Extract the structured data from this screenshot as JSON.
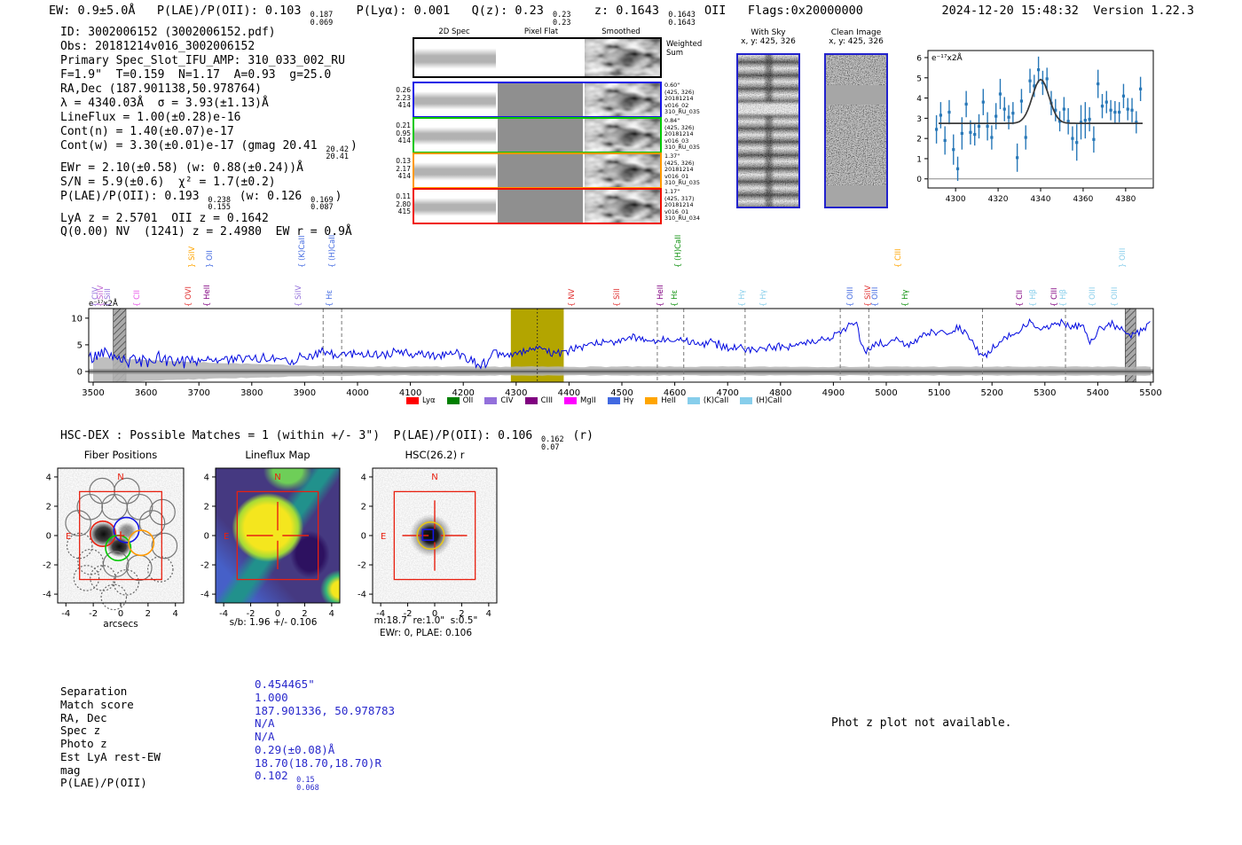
{
  "header": {
    "parts": [
      {
        "t": "EW: 0.9±5.0Å   P(LAE)/P(OII): 0.103 "
      },
      {
        "f": [
          "0.187",
          "0.069"
        ]
      },
      {
        "t": "   P(Lyα): 0.001   Q(z): 0.23 "
      },
      {
        "f": [
          "0.23",
          "0.23"
        ]
      },
      {
        "t": "   z: 0.1643 "
      },
      {
        "f": [
          "0.1643",
          "0.1643"
        ]
      },
      {
        "t": " OII   Flags:0x20000000"
      }
    ],
    "datetime": "2024-12-20 15:48:32",
    "version": "Version 1.22.3"
  },
  "info_block": {
    "lines": [
      [
        {
          "t": "ID: 3002006152 (3002006152.pdf)"
        }
      ],
      [
        {
          "t": "Obs: 20181214v016_3002006152"
        }
      ],
      [
        {
          "t": "Primary Spec_Slot_IFU_AMP: 310_033_002_RU"
        }
      ],
      [
        {
          "t": "F=1.9\"  T=0.159  N=1.17  A=0.93  g=25.0"
        }
      ],
      [
        {
          "t": "RA,Dec (187.901138,50.978764)"
        }
      ],
      [
        {
          "t": "λ = 4340.03Å  σ = 3.93(±1.13)Å"
        }
      ],
      [
        {
          "t": "LineFlux = 1.00(±0.28)e-16"
        }
      ],
      [
        {
          "t": "Cont(n) = 1.40(±0.07)e-17"
        }
      ],
      [
        {
          "t": "Cont(w) = 3.30(±0.01)e-17 (gmag 20.41 "
        },
        {
          "f": [
            "20.42",
            "20.41"
          ]
        },
        {
          "t": ")"
        }
      ],
      [
        {
          "t": "EWr = 2.10(±0.58) (w: 0.88(±0.24))Å"
        }
      ],
      [
        {
          "t": "S/N = 5.9(±0.6)  χ² = 1.7(±0.2)"
        }
      ],
      [
        {
          "t": "P(LAE)/P(OII): 0.193 "
        },
        {
          "f": [
            "0.238",
            "0.155"
          ]
        },
        {
          "t": " (w: 0.126 "
        },
        {
          "f": [
            "0.169",
            "0.087"
          ]
        },
        {
          "t": ")"
        }
      ],
      [
        {
          "t": "LyA z = 2.5701  OII z = 0.1642"
        }
      ],
      [
        {
          "t": "Q(0.00) NV  (1241) z = 2.4980  EW r = 0.9Å"
        }
      ]
    ]
  },
  "spec2d": {
    "col_titles": [
      "2D Spec",
      "Pixel Flat",
      "Smoothed"
    ],
    "weighted_label": "Weighted\nSum",
    "rows": [
      {
        "border": "#000000",
        "left": [],
        "right": []
      },
      {
        "border": "#1515e6",
        "left": [
          "0.26",
          "2.23",
          "414"
        ],
        "right": [
          "0.60\"",
          "(425, 326)",
          "20181214",
          "v016_02",
          "310_RU_035"
        ]
      },
      {
        "border": "#00c800",
        "left": [
          "0.21",
          "0.95",
          "414"
        ],
        "right": [
          "0.84\"",
          "(425, 326)",
          "20181214",
          "v016_03",
          "310_RU_035"
        ]
      },
      {
        "border": "#ff9900",
        "left": [
          "0.13",
          "2.17",
          "414"
        ],
        "right": [
          "1.37\"",
          "(425, 326)",
          "20181214",
          "v016_01",
          "310_RU_035"
        ]
      },
      {
        "border": "#f01000",
        "left": [
          "0.11",
          "2.80",
          "415"
        ],
        "right": [
          "1.17\"",
          "(425, 317)",
          "20181214",
          "v016_01",
          "310_RU_034"
        ]
      }
    ]
  },
  "sky_panels": {
    "with_sky": {
      "title": "With Sky",
      "subtitle": "x, y: 425, 326"
    },
    "clean": {
      "title": "Clean Image",
      "subtitle": "x, y: 425, 326"
    }
  },
  "chart_data": [
    {
      "id": "line_fit_zoom",
      "type": "scatter",
      "ylabel_inside": "e⁻¹⁷x2Å",
      "xlim": [
        4287,
        4393
      ],
      "ylim": [
        -0.45,
        6.35
      ],
      "xticks": [
        4300,
        4320,
        4340,
        4360,
        4380
      ],
      "yticks": [
        0,
        1,
        2,
        3,
        4,
        5,
        6
      ],
      "fit": {
        "model": "gaussian+constant",
        "baseline": 2.75,
        "amplitude": 2.17,
        "center": 4340.03,
        "sigma": 3.93
      },
      "points": [
        [
          4291,
          2.45,
          0.7
        ],
        [
          4293,
          3.15,
          0.65
        ],
        [
          4295,
          1.9,
          0.7
        ],
        [
          4297,
          3.3,
          0.6
        ],
        [
          4299,
          1.45,
          0.75
        ],
        [
          4301,
          0.5,
          0.6
        ],
        [
          4303,
          2.25,
          0.8
        ],
        [
          4305,
          3.7,
          0.65
        ],
        [
          4307,
          2.3,
          0.6
        ],
        [
          4309,
          2.2,
          0.55
        ],
        [
          4311,
          2.6,
          0.6
        ],
        [
          4313,
          3.8,
          0.65
        ],
        [
          4315,
          2.6,
          0.7
        ],
        [
          4317,
          2.05,
          0.6
        ],
        [
          4319,
          3.1,
          0.65
        ],
        [
          4321,
          4.2,
          0.75
        ],
        [
          4323,
          3.45,
          0.6
        ],
        [
          4325,
          3.05,
          0.6
        ],
        [
          4327,
          3.25,
          0.55
        ],
        [
          4329,
          1.05,
          0.7
        ],
        [
          4331,
          3.85,
          0.6
        ],
        [
          4333,
          2.05,
          0.6
        ],
        [
          4335,
          4.85,
          0.6
        ],
        [
          4337,
          4.6,
          0.55
        ],
        [
          4339,
          5.4,
          0.65
        ],
        [
          4341,
          4.75,
          0.6
        ],
        [
          4343,
          4.95,
          0.55
        ],
        [
          4345,
          3.75,
          0.6
        ],
        [
          4347,
          3.4,
          0.55
        ],
        [
          4349,
          2.85,
          0.5
        ],
        [
          4351,
          3.45,
          0.6
        ],
        [
          4353,
          2.85,
          0.65
        ],
        [
          4355,
          2.0,
          0.6
        ],
        [
          4357,
          1.8,
          0.9
        ],
        [
          4359,
          2.8,
          0.85
        ],
        [
          4361,
          2.9,
          0.9
        ],
        [
          4363,
          2.95,
          0.6
        ],
        [
          4365,
          1.95,
          0.65
        ],
        [
          4367,
          4.7,
          0.7
        ],
        [
          4369,
          3.6,
          0.6
        ],
        [
          4371,
          3.8,
          0.55
        ],
        [
          4373,
          3.4,
          0.5
        ],
        [
          4375,
          3.3,
          0.55
        ],
        [
          4377,
          3.3,
          0.5
        ],
        [
          4379,
          4.1,
          0.6
        ],
        [
          4381,
          3.45,
          0.55
        ],
        [
          4383,
          3.4,
          0.6
        ],
        [
          4385,
          2.8,
          0.55
        ],
        [
          4387,
          4.45,
          0.6
        ]
      ]
    },
    {
      "id": "full_spectrum",
      "type": "line",
      "ylabel_inside": "e⁻¹⁷x2Å",
      "xlim": [
        3490,
        5510
      ],
      "ylim": [
        -2,
        11.8
      ],
      "xticks": [
        3500,
        3600,
        3700,
        3800,
        3900,
        4000,
        4100,
        4200,
        4300,
        4400,
        4500,
        4600,
        4700,
        4800,
        4900,
        5000,
        5100,
        5200,
        5300,
        5400,
        5500
      ],
      "yticks": [
        0,
        5,
        10
      ],
      "emission_center": 4340.03,
      "highlight_band": [
        4290,
        4390
      ],
      "hatched_bands": [
        [
          3538,
          3562
        ],
        [
          5452,
          5472
        ]
      ],
      "dashed_lines": [
        3935,
        3970,
        4567,
        4617,
        4733,
        4913,
        4967,
        5182,
        5339
      ],
      "anchors": [
        [
          3500,
          2.5
        ],
        [
          3520,
          4.0
        ],
        [
          3545,
          3.0
        ],
        [
          3560,
          2.0
        ],
        [
          3600,
          2.2
        ],
        [
          3650,
          2.0
        ],
        [
          3700,
          2.2
        ],
        [
          3750,
          2.3
        ],
        [
          3800,
          2.2
        ],
        [
          3850,
          2.5
        ],
        [
          3880,
          2.2
        ],
        [
          3935,
          3.6
        ],
        [
          3955,
          2.8
        ],
        [
          3975,
          3.4
        ],
        [
          4000,
          3.2
        ],
        [
          4050,
          3.3
        ],
        [
          4080,
          3.5
        ],
        [
          4120,
          3.0
        ],
        [
          4150,
          3.2
        ],
        [
          4200,
          3.3
        ],
        [
          4230,
          1.2
        ],
        [
          4260,
          3.0
        ],
        [
          4300,
          3.3
        ],
        [
          4340,
          4.2
        ],
        [
          4380,
          3.6
        ],
        [
          4420,
          4.2
        ],
        [
          4450,
          5.2
        ],
        [
          4490,
          5.8
        ],
        [
          4520,
          6.4
        ],
        [
          4550,
          5.6
        ],
        [
          4580,
          5.9
        ],
        [
          4610,
          6.1
        ],
        [
          4640,
          5.6
        ],
        [
          4680,
          5.2
        ],
        [
          4720,
          4.2
        ],
        [
          4760,
          4.4
        ],
        [
          4800,
          4.6
        ],
        [
          4840,
          5.2
        ],
        [
          4870,
          5.6
        ],
        [
          4900,
          6.6
        ],
        [
          4920,
          7.6
        ],
        [
          4935,
          9.0
        ],
        [
          4945,
          8.6
        ],
        [
          4955,
          4.4
        ],
        [
          4965,
          3.6
        ],
        [
          4980,
          5.4
        ],
        [
          5000,
          5.0
        ],
        [
          5020,
          6.2
        ],
        [
          5040,
          4.6
        ],
        [
          5060,
          6.0
        ],
        [
          5080,
          7.2
        ],
        [
          5100,
          7.0
        ],
        [
          5120,
          7.6
        ],
        [
          5140,
          8.0
        ],
        [
          5160,
          6.0
        ],
        [
          5175,
          3.4
        ],
        [
          5190,
          3.2
        ],
        [
          5210,
          5.0
        ],
        [
          5230,
          6.6
        ],
        [
          5250,
          7.4
        ],
        [
          5270,
          9.4
        ],
        [
          5290,
          8.0
        ],
        [
          5310,
          8.6
        ],
        [
          5330,
          9.0
        ],
        [
          5350,
          8.2
        ],
        [
          5370,
          8.8
        ],
        [
          5385,
          5.2
        ],
        [
          5400,
          7.6
        ],
        [
          5420,
          9.2
        ],
        [
          5440,
          8.4
        ],
        [
          5460,
          7.0
        ],
        [
          5480,
          7.4
        ],
        [
          5500,
          9.0
        ]
      ],
      "legend": [
        {
          "label": "Lyα",
          "color": "#ff0000"
        },
        {
          "label": "OII",
          "color": "#008000"
        },
        {
          "label": "CIV",
          "color": "#9370db"
        },
        {
          "label": "CIII",
          "color": "#800080"
        },
        {
          "label": "MgII",
          "color": "#ff00ff"
        },
        {
          "label": "Hγ",
          "color": "#4169e1"
        },
        {
          "label": "HeII",
          "color": "#ffa500"
        },
        {
          "label": "(K)CaII",
          "color": "#87ceeb"
        },
        {
          "label": "(H)CaII",
          "color": "#87ceeb"
        }
      ],
      "line_labels": [
        {
          "lam": 3522,
          "text": "CIV",
          "color": "#9370db",
          "tier": 2,
          "br": "{"
        },
        {
          "lam": 3532,
          "text": "SiIV",
          "color": "#c060d0",
          "tier": 2,
          "br": "{"
        },
        {
          "lam": 3546,
          "text": "SiII",
          "color": "#9370db",
          "tier": 2,
          "br": "{"
        },
        {
          "lam": 3600,
          "text": "CII",
          "color": "#e856e8",
          "tier": 2,
          "br": "{"
        },
        {
          "lam": 3698,
          "text": "OVI",
          "color": "#e03030",
          "tier": 2,
          "br": "{"
        },
        {
          "lam": 3704,
          "text": "SiIV",
          "color": "#ffa500",
          "tier": 1,
          "br": "}"
        },
        {
          "lam": 3733,
          "text": "HeII",
          "color": "#800080",
          "tier": 2,
          "br": "{"
        },
        {
          "lam": 3739,
          "text": "OII",
          "color": "#4169e1",
          "tier": 1,
          "br": "}"
        },
        {
          "lam": 3906,
          "text": "SiIV",
          "color": "#9370db",
          "tier": 2,
          "br": "{"
        },
        {
          "lam": 3912,
          "text": "(K)CaII",
          "color": "#4169e1",
          "tier": 1,
          "br": "{"
        },
        {
          "lam": 3964,
          "text": "Hε",
          "color": "#4169e1",
          "tier": 2,
          "br": "{"
        },
        {
          "lam": 3970,
          "text": "(H)CaII",
          "color": "#4169e1",
          "tier": 1,
          "br": "{"
        },
        {
          "lam": 4422,
          "text": "NV",
          "color": "#e03030",
          "tier": 2,
          "br": "{"
        },
        {
          "lam": 4508,
          "text": "SiII",
          "color": "#e03030",
          "tier": 2,
          "br": "{"
        },
        {
          "lam": 4590,
          "text": "HeII",
          "color": "#800080",
          "tier": 2,
          "br": "{"
        },
        {
          "lam": 4618,
          "text": "Hε",
          "color": "#0a8f0a",
          "tier": 2,
          "br": "{"
        },
        {
          "lam": 4624,
          "text": "(H)CaII",
          "color": "#0a8f0a",
          "tier": 1,
          "br": "{"
        },
        {
          "lam": 4745,
          "text": "Hγ",
          "color": "#87ceeb",
          "tier": 2,
          "br": "{"
        },
        {
          "lam": 4786,
          "text": "Hγ",
          "color": "#87ceeb",
          "tier": 2,
          "br": "{"
        },
        {
          "lam": 4950,
          "text": "OIII",
          "color": "#4169e1",
          "tier": 2,
          "br": "{"
        },
        {
          "lam": 4983,
          "text": "SiIV",
          "color": "#e03030",
          "tier": 2,
          "br": "{"
        },
        {
          "lam": 4997,
          "text": "OIII",
          "color": "#4169e1",
          "tier": 2,
          "br": "{"
        },
        {
          "lam": 5040,
          "text": "CIII",
          "color": "#ffa500",
          "tier": 1,
          "br": "{"
        },
        {
          "lam": 5053,
          "text": "Hγ",
          "color": "#0a8f0a",
          "tier": 2,
          "br": "{"
        },
        {
          "lam": 5270,
          "text": "CII",
          "color": "#800080",
          "tier": 2,
          "br": "{"
        },
        {
          "lam": 5296,
          "text": "Hβ",
          "color": "#87ceeb",
          "tier": 2,
          "br": "{"
        },
        {
          "lam": 5336,
          "text": "CIII",
          "color": "#800080",
          "tier": 2,
          "br": "{"
        },
        {
          "lam": 5352,
          "text": "Hβ",
          "color": "#87ceeb",
          "tier": 2,
          "br": "{"
        },
        {
          "lam": 5408,
          "text": "OIII",
          "color": "#87ceeb",
          "tier": 2,
          "br": "{"
        },
        {
          "lam": 5450,
          "text": "OIII",
          "color": "#87ceeb",
          "tier": 2,
          "br": "{"
        },
        {
          "lam": 5464,
          "text": "OIII",
          "color": "#87ceeb",
          "tier": 1,
          "br": "}"
        }
      ]
    }
  ],
  "hsc_dex": {
    "parts": [
      {
        "t": "HSC-DEX : Possible Matches = 1 (within +/- 3\")  P(LAE)/P(OII): 0.106 "
      },
      {
        "f": [
          "0.162",
          "0.07"
        ]
      },
      {
        "t": " (r)"
      }
    ]
  },
  "cutouts": {
    "fiber": {
      "title": "Fiber Positions",
      "xlabel": "arcsecs",
      "north": "N",
      "east": "E",
      "xticks": [
        -4,
        -2,
        0,
        2,
        4
      ],
      "yticks": [
        4,
        2,
        0,
        -2,
        -4
      ]
    },
    "lineflux": {
      "title": "Lineflux Map",
      "caption": "s/b: 1.96 +/- 0.106",
      "north": "N",
      "east": "E",
      "xticks": [
        -4,
        -2,
        0,
        2,
        4
      ],
      "yticks": [
        4,
        2,
        0,
        -2,
        -4
      ]
    },
    "hsc": {
      "title": "HSC(26.2) r",
      "caption1": "m:18.7  re:1.0\"  s:0.5\"",
      "caption2": "EWr: 0, PLAE: 0.106",
      "north": "N",
      "east": "E",
      "xticks": [
        -4,
        -2,
        0,
        2,
        4
      ],
      "yticks": [
        4,
        2,
        0,
        -2,
        -4
      ]
    }
  },
  "match_table": {
    "rows": [
      {
        "label": "Separation",
        "value": "0.454465\""
      },
      {
        "label": "Match score",
        "value": "1.000"
      },
      {
        "label": "RA, Dec",
        "value": "187.901336, 50.978783"
      },
      {
        "label": "Spec z",
        "value": "N/A"
      },
      {
        "label": "Photo z",
        "value": "N/A"
      },
      {
        "label": "Est LyA rest-EW",
        "value": "0.29(±0.08)Å"
      },
      {
        "label": "mag",
        "value": "18.70(18.70,18.70)R"
      },
      {
        "label": "P(LAE)/P(OII)",
        "value": "0.102 ",
        "frac": [
          "0.15",
          "0.068"
        ]
      }
    ]
  },
  "photz_note": "Phot z plot not available.",
  "colors": {
    "value_blue": "#2929cc",
    "spectrum_line": "#0008e0",
    "highlight_band": "#b3a500",
    "point_color": "#2878b8",
    "fit_line": "#3a3a3a",
    "marker_red": "#e82010"
  }
}
